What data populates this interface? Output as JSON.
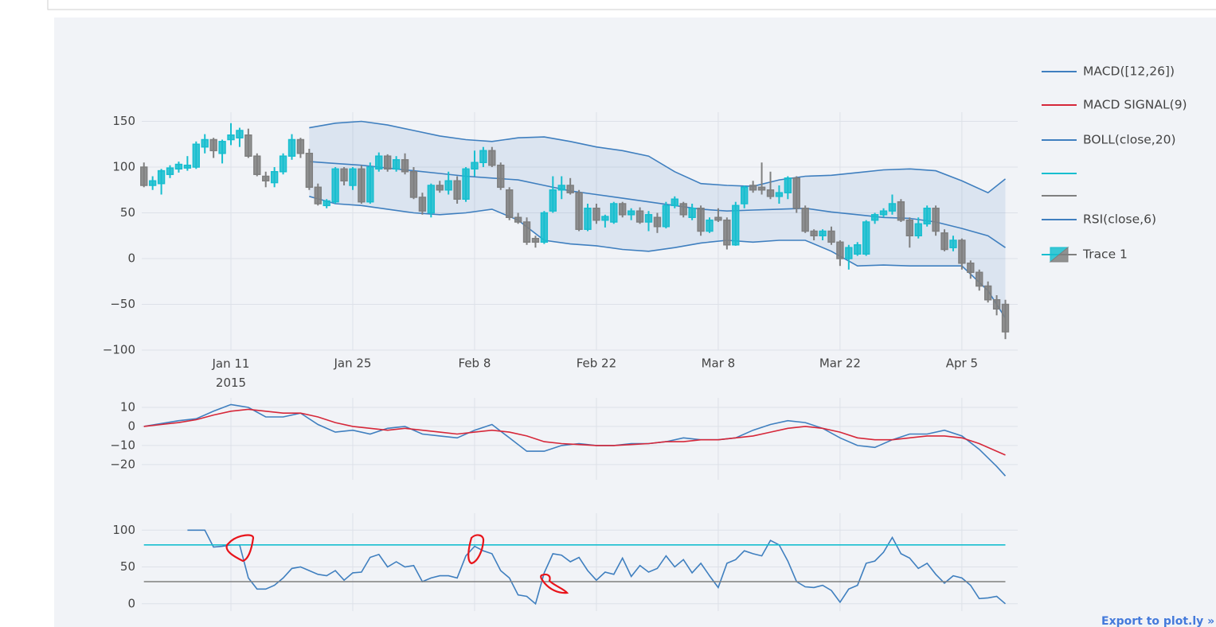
{
  "chart_data": [
    {
      "type": "candlestick",
      "name": "Trace 1",
      "x": [
        "2015-01-01",
        "2015-01-02",
        "2015-01-03",
        "2015-01-04",
        "2015-01-05",
        "2015-01-06",
        "2015-01-07",
        "2015-01-08",
        "2015-01-09",
        "2015-01-10",
        "2015-01-11",
        "2015-01-12",
        "2015-01-13",
        "2015-01-14",
        "2015-01-15",
        "2015-01-16",
        "2015-01-17",
        "2015-01-18",
        "2015-01-19",
        "2015-01-20",
        "2015-01-21",
        "2015-01-22",
        "2015-01-23",
        "2015-01-24",
        "2015-01-25",
        "2015-01-26",
        "2015-01-27",
        "2015-01-28",
        "2015-01-29",
        "2015-01-30",
        "2015-01-31",
        "2015-02-01",
        "2015-02-02",
        "2015-02-03",
        "2015-02-04",
        "2015-02-05",
        "2015-02-06",
        "2015-02-07",
        "2015-02-08",
        "2015-02-09",
        "2015-02-10",
        "2015-02-11",
        "2015-02-12",
        "2015-02-13",
        "2015-02-14",
        "2015-02-15",
        "2015-02-16",
        "2015-02-17",
        "2015-02-18",
        "2015-02-19",
        "2015-02-20",
        "2015-02-21",
        "2015-02-22",
        "2015-02-23",
        "2015-02-24",
        "2015-02-25",
        "2015-02-26",
        "2015-02-27",
        "2015-02-28",
        "2015-03-01",
        "2015-03-02",
        "2015-03-03",
        "2015-03-04",
        "2015-03-05",
        "2015-03-06",
        "2015-03-07",
        "2015-03-08",
        "2015-03-09",
        "2015-03-10",
        "2015-03-11",
        "2015-03-12",
        "2015-03-13",
        "2015-03-14",
        "2015-03-15",
        "2015-03-16",
        "2015-03-17",
        "2015-03-18",
        "2015-03-19",
        "2015-03-20",
        "2015-03-21",
        "2015-03-22",
        "2015-03-23",
        "2015-03-24",
        "2015-03-25",
        "2015-03-26",
        "2015-03-27",
        "2015-03-28",
        "2015-03-29",
        "2015-03-30",
        "2015-03-31",
        "2015-04-01",
        "2015-04-02",
        "2015-04-03",
        "2015-04-04",
        "2015-04-05",
        "2015-04-06",
        "2015-04-07",
        "2015-04-08",
        "2015-04-09",
        "2015-04-10"
      ],
      "open": [
        100,
        80,
        82,
        92,
        98,
        99,
        100,
        122,
        130,
        115,
        130,
        132,
        135,
        112,
        90,
        83,
        95,
        112,
        130,
        115,
        78,
        58,
        62,
        98,
        80,
        98,
        62,
        98,
        112,
        98,
        108,
        95,
        67,
        50,
        80,
        75,
        85,
        65,
        98,
        105,
        118,
        102,
        75,
        45,
        40,
        22,
        18,
        52,
        75,
        80,
        72,
        32,
        55,
        42,
        40,
        60,
        48,
        52,
        40,
        45,
        35,
        58,
        60,
        45,
        55,
        30,
        45,
        42,
        15,
        60,
        80,
        78,
        75,
        68,
        72,
        88,
        55,
        30,
        25,
        30,
        18,
        0,
        5,
        5,
        42,
        48,
        52,
        62,
        42,
        25,
        38,
        55,
        28,
        12,
        20,
        -5,
        -15,
        -30,
        -45,
        -50
      ],
      "high": [
        105,
        90,
        98,
        102,
        106,
        112,
        128,
        136,
        132,
        130,
        148,
        143,
        142,
        115,
        95,
        100,
        115,
        136,
        132,
        120,
        82,
        65,
        100,
        100,
        100,
        102,
        105,
        116,
        114,
        112,
        115,
        100,
        72,
        82,
        85,
        95,
        90,
        100,
        118,
        122,
        122,
        105,
        78,
        50,
        45,
        25,
        52,
        90,
        90,
        88,
        75,
        60,
        60,
        48,
        62,
        62,
        55,
        56,
        52,
        50,
        62,
        68,
        62,
        60,
        58,
        45,
        55,
        45,
        62,
        80,
        85,
        105,
        95,
        80,
        90,
        90,
        58,
        32,
        32,
        35,
        20,
        15,
        18,
        42,
        50,
        55,
        70,
        65,
        45,
        45,
        58,
        58,
        32,
        25,
        22,
        -2,
        -12,
        -25,
        -40,
        -45
      ],
      "low": [
        78,
        75,
        70,
        88,
        94,
        96,
        98,
        115,
        110,
        104,
        124,
        122,
        110,
        90,
        78,
        78,
        92,
        108,
        110,
        75,
        58,
        55,
        60,
        80,
        75,
        60,
        60,
        95,
        95,
        95,
        92,
        65,
        48,
        45,
        72,
        70,
        60,
        62,
        90,
        100,
        100,
        75,
        42,
        38,
        15,
        12,
        16,
        50,
        65,
        70,
        30,
        30,
        38,
        34,
        38,
        45,
        42,
        38,
        30,
        28,
        33,
        55,
        45,
        42,
        25,
        28,
        40,
        10,
        14,
        55,
        72,
        70,
        65,
        60,
        65,
        50,
        28,
        20,
        20,
        15,
        -8,
        -12,
        3,
        3,
        38,
        45,
        48,
        40,
        12,
        22,
        35,
        25,
        8,
        8,
        -12,
        -22,
        -35,
        -48,
        -62,
        -88
      ],
      "close": [
        80,
        85,
        96,
        99,
        103,
        102,
        125,
        130,
        118,
        128,
        135,
        140,
        112,
        92,
        85,
        95,
        112,
        130,
        115,
        78,
        60,
        63,
        98,
        85,
        98,
        62,
        100,
        112,
        98,
        108,
        95,
        67,
        52,
        80,
        75,
        85,
        65,
        98,
        105,
        118,
        102,
        78,
        45,
        40,
        18,
        18,
        50,
        75,
        80,
        72,
        32,
        55,
        42,
        46,
        60,
        48,
        52,
        40,
        48,
        35,
        58,
        65,
        48,
        55,
        30,
        42,
        42,
        15,
        58,
        78,
        75,
        75,
        68,
        72,
        88,
        55,
        30,
        25,
        30,
        18,
        0,
        12,
        15,
        40,
        48,
        52,
        60,
        42,
        25,
        38,
        55,
        30,
        10,
        20,
        -5,
        -15,
        -30,
        -45,
        -55,
        -80
      ],
      "increasing_color": "#17becf",
      "decreasing_color": "#7f7f7f",
      "series": [
        {
          "name": "BOLL(close,20)",
          "color": "#3f7fbf",
          "x": [
            "2015-01-20",
            "2015-01-23",
            "2015-01-26",
            "2015-01-29",
            "2015-02-01",
            "2015-02-04",
            "2015-02-07",
            "2015-02-10",
            "2015-02-13",
            "2015-02-16",
            "2015-02-19",
            "2015-02-22",
            "2015-02-25",
            "2015-02-28",
            "2015-03-03",
            "2015-03-06",
            "2015-03-09",
            "2015-03-12",
            "2015-03-15",
            "2015-03-18",
            "2015-03-21",
            "2015-03-24",
            "2015-03-27",
            "2015-03-30",
            "2015-04-02",
            "2015-04-05",
            "2015-04-08",
            "2015-04-10"
          ],
          "values": [
            106,
            104,
            102,
            99,
            96,
            93,
            90,
            88,
            86,
            80,
            74,
            70,
            66,
            62,
            58,
            54,
            52,
            53,
            54,
            55,
            51,
            48,
            45,
            44,
            40,
            33,
            25,
            12
          ],
          "upper": [
            143,
            148,
            150,
            146,
            140,
            134,
            130,
            128,
            132,
            133,
            128,
            122,
            118,
            112,
            95,
            82,
            80,
            79,
            86,
            90,
            91,
            94,
            97,
            98,
            96,
            85,
            72,
            87
          ],
          "lower": [
            68,
            60,
            58,
            54,
            50,
            48,
            50,
            54,
            42,
            20,
            16,
            14,
            10,
            8,
            12,
            17,
            20,
            18,
            20,
            20,
            8,
            -8,
            -7,
            -8,
            -8,
            -8,
            -35,
            -65
          ]
        }
      ],
      "xlim": [
        "2014-12-31T18:00:00Z",
        "2015-04-11T10:00:00Z"
      ],
      "xticks": [
        {
          "value": "2015-01-11",
          "label": "Jan 11\n2015"
        },
        {
          "value": "2015-01-25",
          "label": "Jan 25"
        },
        {
          "value": "2015-02-08",
          "label": "Feb 8"
        },
        {
          "value": "2015-02-22",
          "label": "Feb 22"
        },
        {
          "value": "2015-03-08",
          "label": "Mar 8"
        },
        {
          "value": "2015-03-22",
          "label": "Mar 22"
        },
        {
          "value": "2015-04-05",
          "label": "Apr 5"
        }
      ],
      "ylim": [
        -100,
        160
      ],
      "yticks": [
        {
          "value": -100,
          "label": "−100"
        },
        {
          "value": -50,
          "label": "−50"
        },
        0,
        50,
        100,
        150
      ],
      "grid": true
    },
    {
      "type": "line",
      "x": [
        "2015-01-01",
        "2015-01-03",
        "2015-01-05",
        "2015-01-07",
        "2015-01-09",
        "2015-01-11",
        "2015-01-13",
        "2015-01-15",
        "2015-01-17",
        "2015-01-19",
        "2015-01-21",
        "2015-01-23",
        "2015-01-25",
        "2015-01-27",
        "2015-01-29",
        "2015-01-31",
        "2015-02-02",
        "2015-02-04",
        "2015-02-06",
        "2015-02-08",
        "2015-02-10",
        "2015-02-12",
        "2015-02-14",
        "2015-02-16",
        "2015-02-18",
        "2015-02-20",
        "2015-02-22",
        "2015-02-24",
        "2015-02-26",
        "2015-02-28",
        "2015-03-02",
        "2015-03-04",
        "2015-03-06",
        "2015-03-08",
        "2015-03-10",
        "2015-03-12",
        "2015-03-14",
        "2015-03-16",
        "2015-03-18",
        "2015-03-20",
        "2015-03-22",
        "2015-03-24",
        "2015-03-26",
        "2015-03-28",
        "2015-03-30",
        "2015-04-01",
        "2015-04-03",
        "2015-04-05",
        "2015-04-07",
        "2015-04-09",
        "2015-04-10"
      ],
      "series": [
        {
          "name": "MACD([12,26])",
          "color": "#3f7fbf",
          "values": [
            0,
            1.5,
            3,
            4,
            8,
            11.5,
            10,
            5,
            5,
            7,
            1,
            -3,
            -2,
            -4,
            -1,
            0,
            -4,
            -5,
            -6,
            -2,
            1,
            -6,
            -13,
            -13,
            -10,
            -9,
            -10,
            -10,
            -9,
            -9,
            -8,
            -6,
            -7,
            -7,
            -6,
            -2,
            1,
            3,
            2,
            -1,
            -6,
            -10,
            -11,
            -7,
            -4,
            -4,
            -2,
            -5,
            -12,
            -21,
            -26
          ]
        },
        {
          "name": "MACD SIGNAL(9)",
          "color": "#d62739",
          "values": [
            0,
            1,
            2,
            3.5,
            6,
            8,
            9,
            8,
            7,
            7,
            5,
            2,
            0,
            -1,
            -2,
            -1,
            -2,
            -3,
            -4,
            -3,
            -2,
            -3,
            -5,
            -8,
            -9,
            -9.5,
            -10,
            -10,
            -9.5,
            -9,
            -8,
            -8,
            -7,
            -7,
            -6,
            -5,
            -3,
            -1,
            0,
            -1,
            -3,
            -6,
            -7,
            -7,
            -6,
            -5,
            -5,
            -6,
            -9,
            -13,
            -15
          ]
        }
      ],
      "xlim": [
        "2014-12-31T18:00:00Z",
        "2015-04-11T10:00:00Z"
      ],
      "xgrid": [
        "2015-01-11",
        "2015-01-25",
        "2015-02-08",
        "2015-02-22",
        "2015-03-08",
        "2015-03-22",
        "2015-04-05"
      ],
      "ylim": [
        -28,
        15
      ],
      "yticks": [
        {
          "value": -20,
          "label": "−20"
        },
        {
          "value": -10,
          "label": "−10"
        },
        0,
        10
      ],
      "grid": true
    },
    {
      "type": "line",
      "x": [
        "2015-01-01",
        "2015-01-02",
        "2015-01-03",
        "2015-01-04",
        "2015-01-05",
        "2015-01-06",
        "2015-01-07",
        "2015-01-08",
        "2015-01-09",
        "2015-01-10",
        "2015-01-11",
        "2015-01-12",
        "2015-01-13",
        "2015-01-14",
        "2015-01-15",
        "2015-01-16",
        "2015-01-17",
        "2015-01-18",
        "2015-01-19",
        "2015-01-20",
        "2015-01-21",
        "2015-01-22",
        "2015-01-23",
        "2015-01-24",
        "2015-01-25",
        "2015-01-26",
        "2015-01-27",
        "2015-01-28",
        "2015-01-29",
        "2015-01-30",
        "2015-01-31",
        "2015-02-01",
        "2015-02-02",
        "2015-02-03",
        "2015-02-04",
        "2015-02-05",
        "2015-02-06",
        "2015-02-07",
        "2015-02-08",
        "2015-02-09",
        "2015-02-10",
        "2015-02-11",
        "2015-02-12",
        "2015-02-13",
        "2015-02-14",
        "2015-02-15",
        "2015-02-16",
        "2015-02-17",
        "2015-02-18",
        "2015-02-19",
        "2015-02-20",
        "2015-02-21",
        "2015-02-22",
        "2015-02-23",
        "2015-02-24",
        "2015-02-25",
        "2015-02-26",
        "2015-02-27",
        "2015-02-28",
        "2015-03-01",
        "2015-03-02",
        "2015-03-03",
        "2015-03-04",
        "2015-03-05",
        "2015-03-06",
        "2015-03-07",
        "2015-03-08",
        "2015-03-09",
        "2015-03-10",
        "2015-03-11",
        "2015-03-12",
        "2015-03-13",
        "2015-03-14",
        "2015-03-15",
        "2015-03-16",
        "2015-03-17",
        "2015-03-18",
        "2015-03-19",
        "2015-03-20",
        "2015-03-21",
        "2015-03-22",
        "2015-03-23",
        "2015-03-24",
        "2015-03-25",
        "2015-03-26",
        "2015-03-27",
        "2015-03-28",
        "2015-03-29",
        "2015-03-30",
        "2015-03-31",
        "2015-04-01",
        "2015-04-02",
        "2015-04-03",
        "2015-04-04",
        "2015-04-05",
        "2015-04-06",
        "2015-04-07",
        "2015-04-08",
        "2015-04-09",
        "2015-04-10"
      ],
      "series": [
        {
          "name": "RSI(close,6)",
          "color": "#3f7fbf",
          "values": [
            null,
            null,
            null,
            null,
            null,
            100,
            100,
            100,
            77,
            78,
            80,
            80,
            35,
            20,
            20,
            25,
            35,
            48,
            50,
            45,
            40,
            38,
            45,
            32,
            42,
            43,
            63,
            67,
            50,
            57,
            50,
            52,
            30,
            35,
            38,
            38,
            35,
            65,
            78,
            72,
            68,
            45,
            35,
            12,
            10,
            0,
            42,
            68,
            66,
            57,
            63,
            45,
            32,
            43,
            40,
            62,
            37,
            52,
            43,
            48,
            65,
            50,
            60,
            42,
            55,
            38,
            22,
            55,
            60,
            72,
            68,
            65,
            86,
            80,
            58,
            30,
            23,
            22,
            25,
            18,
            2,
            20,
            25,
            55,
            58,
            70,
            90,
            68,
            62,
            48,
            55,
            40,
            28,
            38,
            35,
            25,
            7,
            8,
            10,
            0
          ]
        },
        {
          "color": "#17becf",
          "x": [
            "2015-01-01",
            "2015-04-10"
          ],
          "values": [
            80,
            80
          ]
        },
        {
          "color": "#7f7f7f",
          "x": [
            "2015-01-01",
            "2015-04-10"
          ],
          "values": [
            30,
            30
          ]
        }
      ],
      "xlim": [
        "2014-12-31T18:00:00Z",
        "2015-04-11T10:00:00Z"
      ],
      "xgrid": [
        "2015-01-11",
        "2015-01-25",
        "2015-02-08",
        "2015-02-22",
        "2015-03-08",
        "2015-03-22",
        "2015-04-05"
      ],
      "ylim": [
        -10,
        123
      ],
      "yticks": [
        0,
        50,
        100
      ],
      "grid": true
    }
  ],
  "export_link": "Export to plot.ly »"
}
